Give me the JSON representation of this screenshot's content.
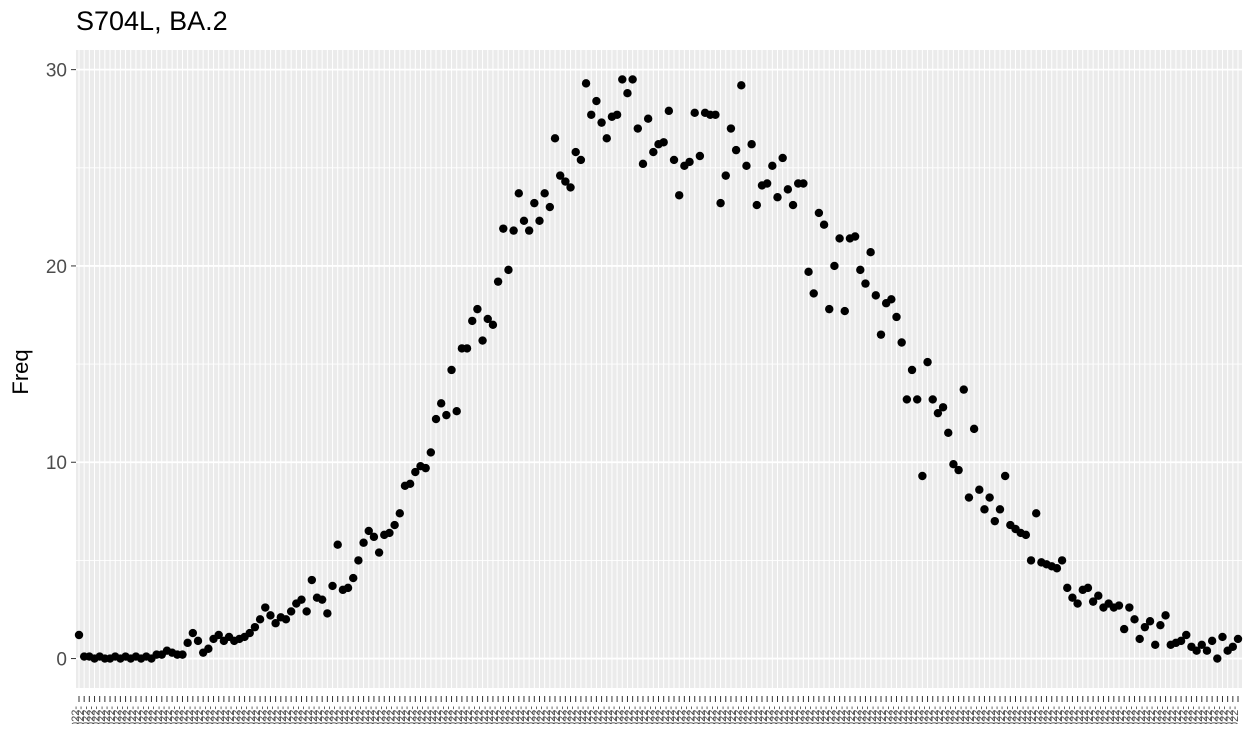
{
  "chart_data": {
    "type": "scatter",
    "title": "S704L, BA.2",
    "ylabel": "Freq",
    "xlabel": "",
    "x_tick_label": "2022-",
    "y_ticks": [
      0,
      10,
      20,
      30
    ],
    "ylim": [
      -1.5,
      31
    ],
    "grid": true,
    "panel_background": "#ebebeb",
    "grid_color": "#ffffff",
    "point_color": "#000000",
    "series": [
      {
        "values": [
          1.2,
          0.1,
          0.1,
          0.0,
          0.1,
          0.0,
          0.0,
          0.1,
          0.0,
          0.1,
          0.0,
          0.1,
          0.0,
          0.1,
          0.0,
          0.2,
          0.2,
          0.4,
          0.3,
          0.2,
          0.2,
          0.8,
          1.3,
          0.9,
          0.3,
          0.5,
          1.0,
          1.2,
          0.9,
          1.1,
          0.9,
          1.0,
          1.1,
          1.3,
          1.6,
          2.0,
          2.6,
          2.2,
          1.8,
          2.1,
          2.0,
          2.4,
          2.8,
          3.0,
          2.4,
          4.0,
          3.1,
          3.0,
          2.3,
          3.7,
          5.8,
          3.5,
          3.6,
          4.1,
          5.0,
          5.9,
          6.5,
          6.2,
          5.4,
          6.3,
          6.4,
          6.8,
          7.4,
          8.8,
          8.9,
          9.5,
          9.8,
          9.7,
          10.5,
          12.2,
          13.0,
          12.4,
          14.7,
          12.6,
          15.8,
          15.8,
          17.2,
          17.8,
          16.2,
          17.3,
          17.0,
          19.2,
          21.9,
          19.8,
          21.8,
          23.7,
          22.3,
          21.8,
          23.2,
          22.3,
          23.7,
          23.0,
          26.5,
          24.6,
          24.3,
          24.0,
          25.8,
          25.4,
          29.3,
          27.7,
          28.4,
          27.3,
          26.5,
          27.6,
          27.7,
          29.5,
          28.8,
          29.5,
          27.0,
          25.2,
          27.5,
          25.8,
          26.2,
          26.3,
          27.9,
          25.4,
          23.6,
          25.1,
          25.3,
          27.8,
          25.6,
          27.8,
          27.7,
          27.7,
          23.2,
          24.6,
          27.0,
          25.9,
          29.2,
          25.1,
          26.2,
          23.1,
          24.1,
          24.2,
          25.1,
          23.5,
          25.5,
          23.9,
          23.1,
          24.2,
          24.2,
          19.7,
          18.6,
          22.7,
          22.1,
          17.8,
          20.0,
          21.4,
          17.7,
          21.4,
          21.5,
          19.8,
          19.1,
          20.7,
          18.5,
          16.5,
          18.1,
          18.3,
          17.4,
          16.1,
          13.2,
          14.7,
          13.2,
          9.3,
          15.1,
          13.2,
          12.5,
          12.8,
          11.5,
          9.9,
          9.6,
          13.7,
          8.2,
          11.7,
          8.6,
          7.6,
          8.2,
          7.0,
          7.6,
          9.3,
          6.8,
          6.6,
          6.4,
          6.3,
          5.0,
          7.4,
          4.9,
          4.8,
          4.7,
          4.6,
          5.0,
          3.6,
          3.1,
          2.8,
          3.5,
          3.6,
          2.9,
          3.2,
          2.6,
          2.8,
          2.6,
          2.7,
          1.5,
          2.6,
          2.0,
          1.0,
          1.6,
          1.9,
          0.7,
          1.7,
          2.2,
          0.7,
          0.8,
          0.9,
          1.2,
          0.6,
          0.4,
          0.7,
          0.4,
          0.9,
          0.0,
          1.1,
          0.4,
          0.6,
          1.0
        ]
      }
    ]
  }
}
